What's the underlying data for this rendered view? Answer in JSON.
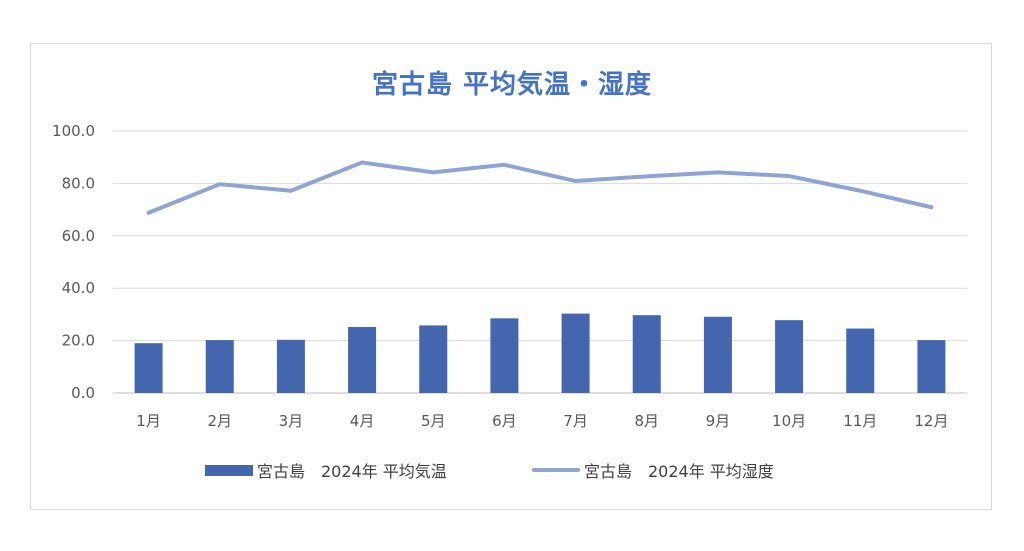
{
  "chart_data": {
    "type": "bar+line",
    "title": "宮古島 平均気温・湿度",
    "categories": [
      "1月",
      "2月",
      "3月",
      "4月",
      "5月",
      "6月",
      "7月",
      "8月",
      "9月",
      "10月",
      "11月",
      "12月"
    ],
    "ylim": [
      0,
      100
    ],
    "yticks": [
      "0.0",
      "20.0",
      "40.0",
      "60.0",
      "80.0",
      "100.0"
    ],
    "grid": true,
    "legend_position": "bottom",
    "series": [
      {
        "name": "宮古島　2024年 平均気温",
        "type": "bar",
        "color": "#4466ae",
        "values": [
          19.0,
          20.2,
          20.3,
          25.2,
          25.8,
          28.5,
          30.3,
          29.7,
          29.1,
          27.8,
          24.6,
          20.2
        ]
      },
      {
        "name": "宮古島　2024年 平均湿度",
        "type": "line",
        "color": "#8fa3d4",
        "values": [
          68.8,
          79.7,
          77.2,
          88.0,
          84.2,
          87.1,
          80.9,
          82.7,
          84.2,
          82.8,
          77.2,
          70.9
        ]
      }
    ]
  }
}
